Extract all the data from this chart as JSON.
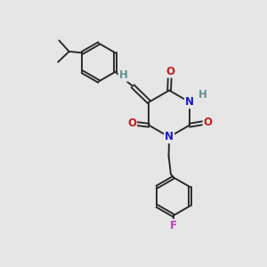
{
  "bg_color": "#e6e6e6",
  "bond_color": "#2a2a2a",
  "bond_width": 1.4,
  "atom_colors": {
    "C": "#2a2a2a",
    "H_gray": "#5f9090",
    "N": "#1a1acc",
    "O": "#cc1a1a",
    "F": "#cc33cc"
  },
  "font_size": 8.5
}
